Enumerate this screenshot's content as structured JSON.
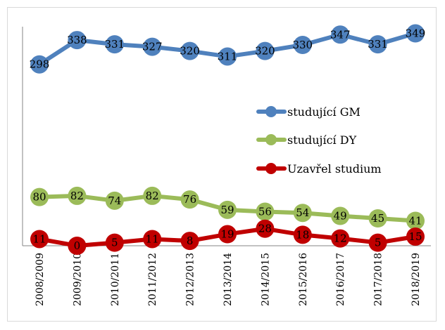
{
  "chart_data": {
    "type": "line",
    "title": "",
    "xlabel": "",
    "ylabel": "",
    "ylim": [
      0,
      360
    ],
    "grid": false,
    "legend_position": "right",
    "categories": [
      "2008/2009",
      "2009/2010",
      "2010/2011",
      "2011/2012",
      "2012/2013",
      "2013/2014",
      "2014/2015",
      "2015/2016",
      "2016/2017",
      "2017/2018",
      "2018/2019"
    ],
    "series": [
      {
        "name": "studující GM",
        "color": "#4f81bd",
        "values": [
          298,
          338,
          331,
          327,
          320,
          311,
          320,
          330,
          347,
          331,
          349
        ]
      },
      {
        "name": "studující DY",
        "color": "#9bbb59",
        "values": [
          80,
          82,
          74,
          82,
          76,
          59,
          56,
          54,
          49,
          45,
          41
        ]
      },
      {
        "name": "Uzavřel studium",
        "color": "#c00000",
        "values": [
          11,
          0,
          5,
          11,
          8,
          19,
          28,
          18,
          12,
          5,
          15
        ]
      }
    ]
  }
}
